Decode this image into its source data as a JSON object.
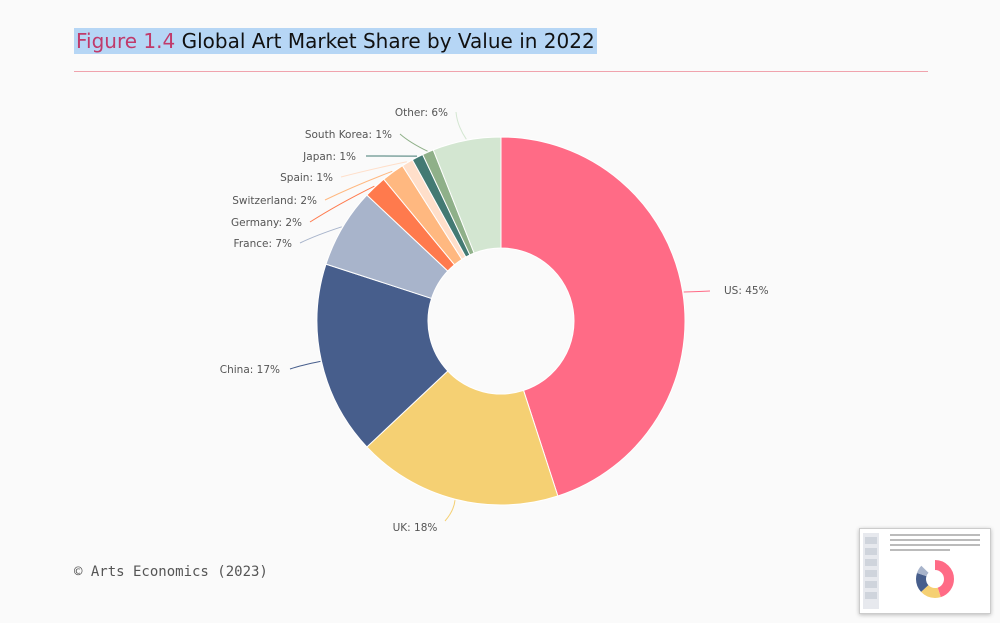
{
  "header": {
    "figure_label": "Figure 1.4",
    "title": "Global Art Market Share by Value in 2022"
  },
  "footer": {
    "credit": "© Arts Economics (2023)"
  },
  "chart_data": {
    "type": "pie",
    "variant": "donut",
    "title": "Global Art Market Share by Value in 2022",
    "categories": [
      "US",
      "UK",
      "China",
      "France",
      "Germany",
      "Switzerland",
      "Spain",
      "Japan",
      "South Korea",
      "Other"
    ],
    "values": [
      45,
      18,
      17,
      7,
      2,
      2,
      1,
      1,
      1,
      6
    ],
    "unit": "%",
    "labels": [
      "US: 45%",
      "UK: 18%",
      "China: 17%",
      "France: 7%",
      "Germany: 2%",
      "Switzerland: 2%",
      "Spain: 1%",
      "Japan: 1%",
      "South Korea: 1%",
      "Other: 6%"
    ],
    "colors": [
      "#ff6b86",
      "#f5d073",
      "#475e8c",
      "#a8b4cb",
      "#ff7a4d",
      "#ffb880",
      "#ffdfca",
      "#437a73",
      "#8fb089",
      "#d3e6d1"
    ],
    "legend": "none"
  }
}
